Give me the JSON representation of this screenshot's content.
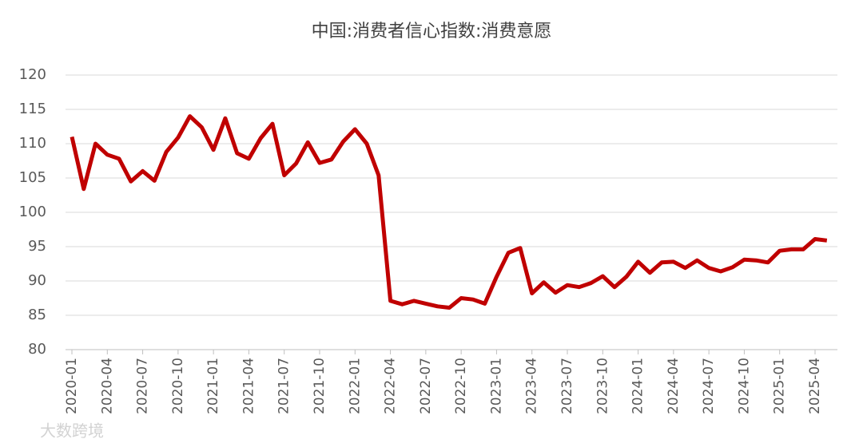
{
  "chart_data": {
    "type": "line",
    "title": "中国:消费者信心指数:消费意愿",
    "categories": [
      "2020-01",
      null,
      null,
      "2020-04",
      null,
      null,
      "2020-07",
      null,
      null,
      "2020-10",
      null,
      null,
      "2021-01",
      null,
      null,
      "2021-04",
      null,
      null,
      "2021-07",
      null,
      null,
      "2021-10",
      null,
      null,
      "2022-01",
      null,
      null,
      "2022-04",
      null,
      null,
      "2022-07",
      null,
      null,
      "2022-10",
      null,
      null,
      "2023-01",
      null,
      null,
      "2023-04",
      null,
      null,
      "2023-07",
      null,
      null,
      "2023-10",
      null,
      null,
      "2024-01",
      null,
      null,
      "2024-04",
      null,
      null,
      "2024-07",
      null,
      null,
      "2024-10",
      null,
      null,
      "2025-01",
      null,
      null,
      "2025-04",
      null
    ],
    "series": [
      {
        "name": "消费意愿",
        "color": "#c00000",
        "values": [
          111.0,
          103.4,
          110.0,
          108.4,
          107.8,
          104.5,
          106.0,
          104.6,
          108.8,
          110.9,
          114.0,
          112.4,
          109.1,
          113.7,
          108.6,
          107.8,
          110.8,
          112.9,
          105.4,
          107.1,
          110.2,
          107.2,
          107.7,
          110.3,
          112.1,
          110.0,
          105.4,
          87.1,
          86.6,
          87.1,
          86.7,
          86.3,
          86.1,
          87.5,
          87.3,
          86.7,
          90.6,
          94.1,
          94.8,
          88.2,
          89.8,
          88.3,
          89.4,
          89.1,
          89.7,
          90.7,
          89.1,
          90.6,
          92.8,
          91.2,
          92.7,
          92.8,
          91.9,
          93.0,
          91.9,
          91.4,
          92.0,
          93.1,
          93.0,
          92.7,
          94.4,
          94.6,
          94.6,
          96.1,
          95.9
        ]
      }
    ],
    "ylim": [
      80,
      120
    ],
    "yticks": [
      80,
      85,
      90,
      95,
      100,
      105,
      110,
      115,
      120
    ],
    "grid": true,
    "watermark": "大数跨境"
  }
}
